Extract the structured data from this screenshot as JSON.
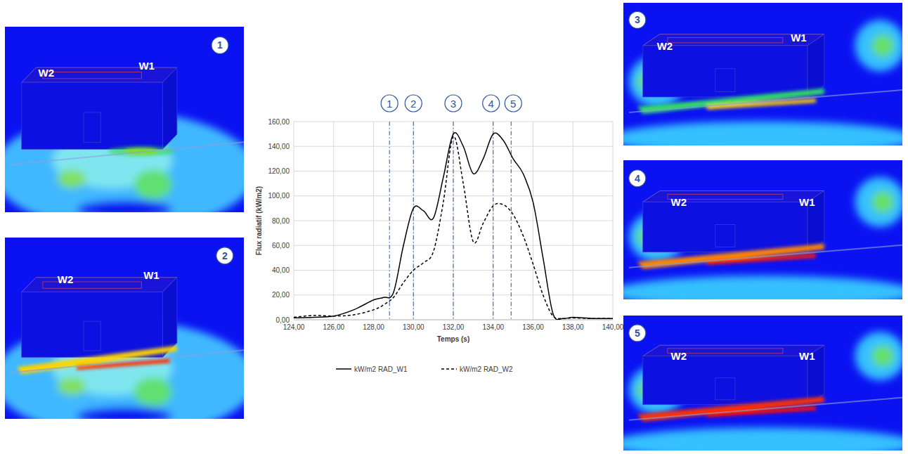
{
  "chart_data": {
    "type": "line",
    "x": [
      124,
      125,
      126,
      127,
      128,
      128.5,
      129,
      129.5,
      130,
      130.5,
      131,
      131.5,
      132,
      132.5,
      133,
      133.5,
      134,
      134.5,
      135,
      135.5,
      136,
      136.5,
      137,
      137.5,
      138,
      139,
      140
    ],
    "series": [
      {
        "name": "kW/m2 RAD_W1",
        "color": "#000000",
        "line_style": "solid",
        "values": [
          1.5,
          2,
          3,
          8,
          16,
          18,
          22,
          60,
          90,
          88,
          82,
          115,
          150,
          140,
          118,
          130,
          150,
          145,
          130,
          118,
          95,
          50,
          5,
          1,
          2,
          1,
          1
        ]
      },
      {
        "name": "kW/m2 RAD_W2",
        "color": "#000000",
        "line_style": "dashed",
        "values": [
          2,
          3.5,
          3,
          4,
          8,
          12,
          18,
          30,
          40,
          46,
          55,
          95,
          148,
          110,
          63,
          78,
          92,
          93,
          85,
          68,
          45,
          20,
          3,
          1,
          1.5,
          1,
          1
        ]
      }
    ],
    "x_label": "Temps (s)",
    "y_label": "Flux radiatif (kW/m2)",
    "xlim": [
      124,
      140
    ],
    "ylim": [
      0,
      160
    ],
    "xticks": [
      {
        "value": 124,
        "label": "124,00"
      },
      {
        "value": 126,
        "label": "126,00"
      },
      {
        "value": 128,
        "label": "128,00"
      },
      {
        "value": 130,
        "label": "130,00"
      },
      {
        "value": 132,
        "label": "132,00"
      },
      {
        "value": 134,
        "label": "134,00"
      },
      {
        "value": 136,
        "label": "136,00"
      },
      {
        "value": 138,
        "label": "138,00"
      },
      {
        "value": 140,
        "label": "140,00"
      }
    ],
    "yticks": [
      {
        "value": 0,
        "label": "0,00"
      },
      {
        "value": 20,
        "label": "20,00"
      },
      {
        "value": 40,
        "label": "40,00"
      },
      {
        "value": 60,
        "label": "60,00"
      },
      {
        "value": 80,
        "label": "80,00"
      },
      {
        "value": 100,
        "label": "100,00"
      },
      {
        "value": 120,
        "label": "120,00"
      },
      {
        "value": 140,
        "label": "140,00"
      },
      {
        "value": 160,
        "label": "160,00"
      }
    ],
    "grid": true,
    "legend": "bottom",
    "annotations": [
      {
        "x": 128.8,
        "label": "1"
      },
      {
        "x": 130,
        "label": "2"
      },
      {
        "x": 132,
        "label": "3"
      },
      {
        "x": 134,
        "label": "4"
      },
      {
        "x": 134.9,
        "label": "5"
      }
    ]
  },
  "panels": [
    {
      "number": "1",
      "labels": [
        "W2",
        "W1"
      ]
    },
    {
      "number": "2",
      "labels": [
        "W2",
        "W1"
      ]
    },
    {
      "number": "3",
      "labels": [
        "W2",
        "W1"
      ]
    },
    {
      "number": "4",
      "labels": [
        "W2",
        "W1"
      ]
    },
    {
      "number": "5",
      "labels": [
        "W2",
        "W1"
      ]
    }
  ]
}
